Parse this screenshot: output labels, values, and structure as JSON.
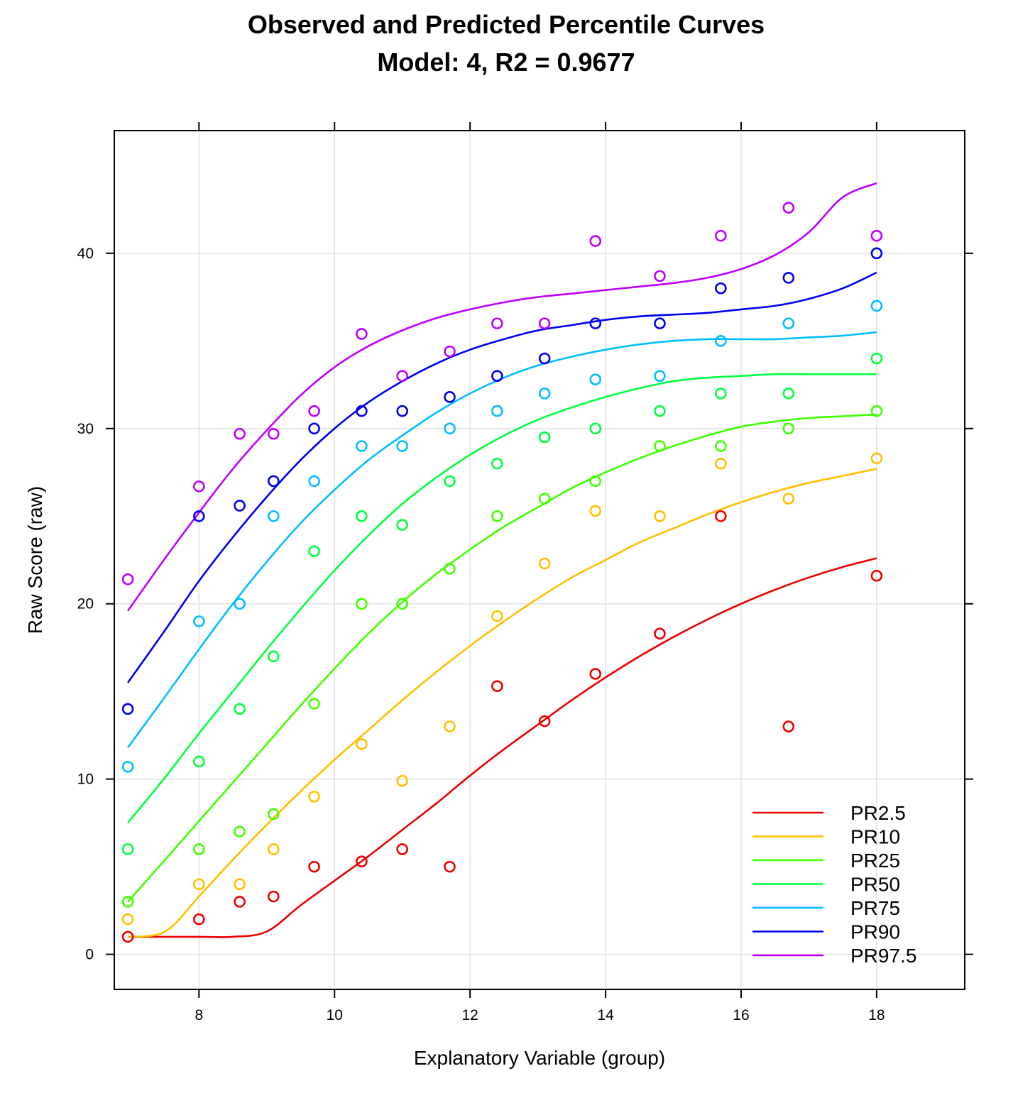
{
  "chart_data": {
    "type": "line",
    "title": "Observed and Predicted Percentile Curves",
    "subtitle": "Model: 4, R2 = 0.9677",
    "xlabel": "Explanatory Variable (group)",
    "ylabel": "Raw Score (raw)",
    "xlim": [
      6.75,
      19.3
    ],
    "ylim": [
      -2,
      47
    ],
    "xticks": [
      "8",
      "10",
      "12",
      "14",
      "16",
      "18"
    ],
    "yticks": [
      "0",
      "10",
      "20",
      "30",
      "40"
    ],
    "grid": true,
    "legend_position": "bottom-right",
    "observed_x": [
      6.95,
      8.0,
      8.6,
      9.1,
      9.7,
      10.4,
      11.0,
      11.7,
      12.4,
      13.1,
      13.85,
      14.8,
      15.7,
      16.7,
      18.0
    ],
    "predicted_x": [
      6.95,
      7.5,
      8.0,
      8.5,
      9.0,
      9.5,
      10.0,
      10.5,
      11.0,
      11.5,
      12.0,
      12.5,
      13.0,
      13.5,
      14.0,
      14.5,
      15.0,
      15.5,
      16.0,
      16.5,
      17.0,
      17.5,
      18.0
    ],
    "series": [
      {
        "name": "PR2.5",
        "color": "#ee0000",
        "observed": [
          1,
          2,
          3,
          3.3,
          5,
          5.3,
          6,
          5,
          15.3,
          13.3,
          16,
          18.3,
          25,
          13,
          21.6
        ],
        "predicted": [
          1,
          1,
          1,
          1,
          1.3,
          2.8,
          4.2,
          5.6,
          7.1,
          8.6,
          10.2,
          11.7,
          13.1,
          14.5,
          15.8,
          17.0,
          18.1,
          19.1,
          20.0,
          20.8,
          21.5,
          22.1,
          22.6
        ]
      },
      {
        "name": "PR10",
        "color": "#ffbf00",
        "observed": [
          2,
          4,
          4,
          6,
          9,
          12,
          9.9,
          13,
          19.3,
          22.3,
          25.3,
          25,
          28,
          26,
          28.3
        ],
        "predicted": [
          1,
          1.3,
          3.3,
          5.4,
          7.4,
          9.3,
          11.1,
          12.8,
          14.5,
          16.1,
          17.6,
          19.0,
          20.3,
          21.5,
          22.5,
          23.5,
          24.3,
          25.1,
          25.8,
          26.4,
          26.9,
          27.3,
          27.7
        ]
      },
      {
        "name": "PR25",
        "color": "#40ff00",
        "observed": [
          3,
          6,
          7,
          8,
          14.3,
          20,
          20,
          22,
          25,
          26,
          27,
          29,
          29,
          30,
          31
        ],
        "predicted": [
          3,
          5.4,
          7.6,
          9.8,
          12.0,
          14.2,
          16.3,
          18.3,
          20.1,
          21.7,
          23.1,
          24.4,
          25.5,
          26.6,
          27.5,
          28.3,
          29.0,
          29.6,
          30.1,
          30.4,
          30.6,
          30.7,
          30.8
        ]
      },
      {
        "name": "PR50",
        "color": "#00ff40",
        "observed": [
          6,
          11,
          14,
          17,
          23,
          25,
          24.5,
          27,
          28,
          29.5,
          30,
          31,
          32,
          32,
          34
        ],
        "predicted": [
          7.5,
          10.1,
          12.6,
          15.0,
          17.4,
          19.7,
          21.9,
          23.9,
          25.7,
          27.2,
          28.5,
          29.6,
          30.5,
          31.2,
          31.8,
          32.3,
          32.7,
          32.9,
          33.0,
          33.1,
          33.1,
          33.1,
          33.1
        ]
      },
      {
        "name": "PR75",
        "color": "#00bfff",
        "observed": [
          10.7,
          19,
          20,
          25,
          27,
          29,
          29,
          30,
          31,
          32,
          32.8,
          33,
          35,
          36,
          37
        ],
        "predicted": [
          11.8,
          14.7,
          17.4,
          20.0,
          22.4,
          24.6,
          26.5,
          28.2,
          29.6,
          30.9,
          32.0,
          32.9,
          33.6,
          34.1,
          34.5,
          34.8,
          35.0,
          35.1,
          35.1,
          35.1,
          35.2,
          35.3,
          35.5
        ]
      },
      {
        "name": "PR90",
        "color": "#0000ee",
        "observed": [
          14,
          25,
          25.6,
          27,
          30,
          31,
          31,
          31.8,
          33,
          34,
          36,
          36,
          38,
          38.6,
          40
        ],
        "predicted": [
          15.5,
          18.5,
          21.3,
          23.8,
          26.1,
          28.2,
          30.0,
          31.5,
          32.7,
          33.7,
          34.5,
          35.1,
          35.6,
          35.9,
          36.2,
          36.4,
          36.5,
          36.6,
          36.8,
          37.0,
          37.4,
          38.0,
          38.9
        ]
      },
      {
        "name": "PR97.5",
        "color": "#bf00ff",
        "observed": [
          21.4,
          26.7,
          29.7,
          29.7,
          31,
          35.4,
          33,
          34.4,
          36,
          36,
          40.7,
          38.7,
          41,
          42.6,
          41
        ],
        "predicted": [
          19.6,
          22.6,
          25.2,
          27.7,
          29.9,
          31.9,
          33.5,
          34.7,
          35.6,
          36.3,
          36.8,
          37.2,
          37.5,
          37.7,
          37.9,
          38.1,
          38.3,
          38.6,
          39.1,
          39.9,
          41.2,
          43.2,
          44.0
        ]
      }
    ]
  }
}
